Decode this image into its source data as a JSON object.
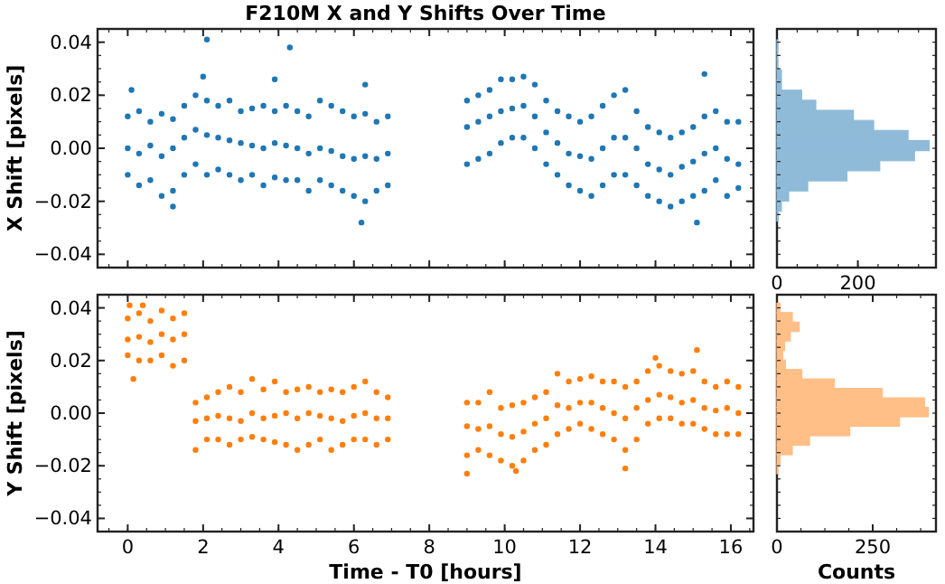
{
  "chart_data": [
    {
      "type": "scatter",
      "title": "F210M X and Y Shifts Over Time",
      "ylabel": "X Shift [pixels]",
      "xlim": [
        -0.8,
        16.6
      ],
      "ylim": [
        -0.045,
        0.045
      ],
      "xticks": [
        0,
        2,
        4,
        6,
        8,
        10,
        12,
        14,
        16
      ],
      "yticks": [
        {
          "value": -0.04,
          "label": "−0.04"
        },
        {
          "value": -0.02,
          "label": "−0.02"
        },
        {
          "value": 0,
          "label": "0.00"
        },
        {
          "value": 0.02,
          "label": "0.02"
        },
        {
          "value": 0.04,
          "label": "0.04"
        }
      ],
      "tick_labels": "y",
      "marker": "circle",
      "series": [
        {
          "color": "#1f77b4",
          "x": [
            0,
            0,
            0,
            0.3,
            0.3,
            0.3,
            0.6,
            0.6,
            0.6,
            0.9,
            0.9,
            0.9,
            1.2,
            1.2,
            1.2,
            1.5,
            1.5,
            1.5,
            1.8,
            1.8,
            1.8,
            2.1,
            2.1,
            2.1,
            2.4,
            2.4,
            2.4,
            2.7,
            2.7,
            2.7,
            3,
            3,
            3,
            3.3,
            3.3,
            3.3,
            3.6,
            3.6,
            3.6,
            3.9,
            3.9,
            3.9,
            4.2,
            4.2,
            4.2,
            4.5,
            4.5,
            4.5,
            4.8,
            4.8,
            4.8,
            5.1,
            5.1,
            5.1,
            5.4,
            5.4,
            5.4,
            5.7,
            5.7,
            5.7,
            6,
            6,
            6,
            6.3,
            6.3,
            6.3,
            6.6,
            6.6,
            6.6,
            6.9,
            6.9,
            6.9,
            9,
            9,
            9,
            9.3,
            9.3,
            9.3,
            9.6,
            9.6,
            9.6,
            9.9,
            9.9,
            9.9,
            10.2,
            10.2,
            10.2,
            10.5,
            10.5,
            10.5,
            10.8,
            10.8,
            10.8,
            11.1,
            11.1,
            11.1,
            11.4,
            11.4,
            11.4,
            11.7,
            11.7,
            11.7,
            12,
            12,
            12,
            12.3,
            12.3,
            12.3,
            12.6,
            12.6,
            12.6,
            12.9,
            12.9,
            12.9,
            13.2,
            13.2,
            13.2,
            13.5,
            13.5,
            13.5,
            13.8,
            13.8,
            13.8,
            14.1,
            14.1,
            14.1,
            14.4,
            14.4,
            14.4,
            14.7,
            14.7,
            14.7,
            15,
            15,
            15,
            15.3,
            15.3,
            15.3,
            15.6,
            15.6,
            15.6,
            15.9,
            15.9,
            15.9,
            16.2,
            16.2,
            16.2,
            2.1,
            4.3,
            3.9,
            2,
            6.3,
            6.2,
            15.1,
            15.3,
            0.1,
            1.2
          ],
          "values": [
            0.012,
            0,
            -0.01,
            0.014,
            -0.002,
            -0.014,
            0.01,
            0.001,
            -0.012,
            0.013,
            -0.003,
            -0.018,
            0.011,
            0,
            -0.016,
            0.016,
            0.004,
            -0.01,
            0.02,
            0.007,
            -0.006,
            0.018,
            0.005,
            -0.01,
            0.016,
            0.004,
            -0.008,
            0.018,
            0.003,
            -0.01,
            0.014,
            0.002,
            -0.012,
            0.015,
            0.001,
            -0.01,
            0.016,
            0,
            -0.014,
            0.014,
            0.002,
            -0.011,
            0.016,
            0.001,
            -0.012,
            0.014,
            0,
            -0.012,
            0.012,
            -0.002,
            -0.016,
            0.018,
            0,
            -0.012,
            0.016,
            -0.001,
            -0.014,
            0.014,
            -0.003,
            -0.016,
            0.012,
            -0.004,
            -0.018,
            0.013,
            -0.003,
            -0.02,
            0.01,
            -0.004,
            -0.016,
            0.012,
            -0.002,
            -0.014,
            0.018,
            0.008,
            -0.006,
            0.02,
            0.01,
            -0.004,
            0.022,
            0.012,
            -0.002,
            0.026,
            0.014,
            0.002,
            0.026,
            0.015,
            0.004,
            0.027,
            0.016,
            0.004,
            0.024,
            0.012,
            0,
            0.018,
            0.006,
            -0.006,
            0.014,
            0.002,
            -0.01,
            0.012,
            -0.002,
            -0.014,
            0.01,
            -0.003,
            -0.016,
            0.012,
            -0.004,
            -0.018,
            0.016,
            0,
            -0.014,
            0.02,
            0.004,
            -0.01,
            0.022,
            0.004,
            -0.01,
            0.014,
            0,
            -0.014,
            0.008,
            -0.006,
            -0.018,
            0.006,
            -0.008,
            -0.02,
            0.004,
            -0.01,
            -0.022,
            0.006,
            -0.007,
            -0.02,
            0.008,
            -0.005,
            -0.018,
            0.012,
            -0.002,
            -0.016,
            0.014,
            0,
            -0.012,
            0.01,
            -0.004,
            -0.018,
            0.01,
            -0.006,
            -0.015,
            0.041,
            0.038,
            0.026,
            0.027,
            0.024,
            -0.028,
            -0.028,
            0.028,
            0.022,
            -0.022
          ]
        }
      ]
    },
    {
      "type": "histogram",
      "orientation": "horizontal",
      "ylim": [
        -0.045,
        0.045
      ],
      "xlim": [
        0,
        393
      ],
      "xticks": [
        0,
        200
      ],
      "tick_labels": "x",
      "bins": [
        -0.0275,
        -0.0237,
        -0.0199,
        -0.0161,
        -0.0123,
        -0.0085,
        -0.0047,
        -0.0009,
        0.0029,
        0.0067,
        0.0105,
        0.0143,
        0.0181,
        0.0219,
        0.0257,
        0.0295,
        0.0333,
        0.0371,
        0.0409
      ],
      "values": [
        3,
        11,
        29,
        76,
        173,
        254,
        340,
        376,
        324,
        239,
        189,
        96,
        61,
        11,
        11,
        2,
        1,
        2
      ],
      "color": "#8fbbd9"
    },
    {
      "type": "scatter",
      "xlabel": "Time - T0 [hours]",
      "ylabel": "Y Shift [pixels]",
      "xlim": [
        -0.8,
        16.6
      ],
      "ylim": [
        -0.045,
        0.045
      ],
      "xticks": [
        0,
        2,
        4,
        6,
        8,
        10,
        12,
        14,
        16
      ],
      "yticks": [
        {
          "value": -0.04,
          "label": "−0.04"
        },
        {
          "value": -0.02,
          "label": "−0.02"
        },
        {
          "value": 0,
          "label": "0.00"
        },
        {
          "value": 0.02,
          "label": "0.02"
        },
        {
          "value": 0.04,
          "label": "0.04"
        }
      ],
      "marker": "circle",
      "series": [
        {
          "color": "#ff7f0e",
          "x": [
            0,
            0,
            0,
            0.3,
            0.3,
            0.3,
            0.6,
            0.6,
            0.6,
            0.9,
            0.9,
            0.9,
            1.2,
            1.2,
            1.2,
            1.5,
            1.5,
            1.5,
            1.8,
            1.8,
            1.8,
            2.1,
            2.1,
            2.1,
            2.4,
            2.4,
            2.4,
            2.7,
            2.7,
            2.7,
            3,
            3,
            3,
            3.3,
            3.3,
            3.3,
            3.6,
            3.6,
            3.6,
            3.9,
            3.9,
            3.9,
            4.2,
            4.2,
            4.2,
            4.5,
            4.5,
            4.5,
            4.8,
            4.8,
            4.8,
            5.1,
            5.1,
            5.1,
            5.4,
            5.4,
            5.4,
            5.7,
            5.7,
            5.7,
            6,
            6,
            6,
            6.3,
            6.3,
            6.3,
            6.6,
            6.6,
            6.6,
            6.9,
            6.9,
            6.9,
            9,
            9,
            9,
            9.3,
            9.3,
            9.3,
            9.6,
            9.6,
            9.6,
            9.9,
            9.9,
            9.9,
            10.2,
            10.2,
            10.2,
            10.5,
            10.5,
            10.5,
            10.8,
            10.8,
            10.8,
            11.1,
            11.1,
            11.1,
            11.4,
            11.4,
            11.4,
            11.7,
            11.7,
            11.7,
            12,
            12,
            12,
            12.3,
            12.3,
            12.3,
            12.6,
            12.6,
            12.6,
            12.9,
            12.9,
            12.9,
            13.2,
            13.2,
            13.2,
            13.5,
            13.5,
            13.5,
            13.8,
            13.8,
            13.8,
            14.1,
            14.1,
            14.1,
            14.4,
            14.4,
            14.4,
            14.7,
            14.7,
            14.7,
            15,
            15,
            15,
            15.3,
            15.3,
            15.3,
            15.6,
            15.6,
            15.6,
            15.9,
            15.9,
            15.9,
            16.2,
            16.2,
            16.2,
            0.05,
            0.4,
            0.15,
            15.1,
            14,
            13.2,
            9,
            10.3
          ],
          "values": [
            0.036,
            0.028,
            0.022,
            0.038,
            0.029,
            0.02,
            0.035,
            0.027,
            0.02,
            0.039,
            0.03,
            0.022,
            0.036,
            0.028,
            0.018,
            0.038,
            0.03,
            0.02,
            0.004,
            -0.003,
            -0.014,
            0.006,
            -0.002,
            -0.01,
            0.008,
            -0.001,
            -0.01,
            0.01,
            -0.002,
            -0.012,
            0.008,
            -0.003,
            -0.01,
            0.013,
            0,
            -0.009,
            0.009,
            -0.002,
            -0.01,
            0.012,
            -0.001,
            -0.011,
            0.008,
            0,
            -0.012,
            0.009,
            -0.002,
            -0.014,
            0.01,
            0,
            -0.012,
            0.008,
            -0.001,
            -0.01,
            0.009,
            -0.002,
            -0.014,
            0.008,
            -0.003,
            -0.012,
            0.01,
            -0.001,
            -0.01,
            0.012,
            0,
            -0.01,
            0.008,
            -0.002,
            -0.012,
            0.006,
            -0.002,
            -0.01,
            0.004,
            -0.005,
            -0.016,
            0.004,
            -0.006,
            -0.014,
            0.008,
            -0.005,
            -0.016,
            0.002,
            -0.008,
            -0.018,
            0.003,
            -0.009,
            -0.02,
            0.004,
            -0.007,
            -0.018,
            0.006,
            -0.004,
            -0.014,
            0.008,
            -0.002,
            -0.012,
            0.015,
            0.003,
            -0.008,
            0.012,
            0.002,
            -0.006,
            0.013,
            0.004,
            -0.004,
            0.014,
            0.004,
            -0.006,
            0.012,
            0.002,
            -0.008,
            0.012,
            0,
            -0.01,
            0.01,
            -0.002,
            -0.014,
            0.012,
            0.002,
            -0.01,
            0.016,
            0.005,
            -0.004,
            0.018,
            0.007,
            -0.002,
            0.016,
            0.006,
            -0.002,
            0.015,
            0.004,
            -0.004,
            0.016,
            0.005,
            -0.004,
            0.012,
            0.002,
            -0.006,
            0.01,
            0.001,
            -0.008,
            0.012,
            0.002,
            -0.008,
            0.01,
            0,
            -0.008,
            0.041,
            0.041,
            0.013,
            0.024,
            0.021,
            -0.021,
            -0.023,
            -0.022
          ]
        }
      ]
    },
    {
      "type": "histogram",
      "orientation": "horizontal",
      "xlabel": "Counts",
      "ylim": [
        -0.045,
        0.045
      ],
      "xlim": [
        0,
        415
      ],
      "xticks": [
        0,
        250
      ],
      "tick_labels": "x",
      "bins": [
        -0.023,
        -0.0194,
        -0.0158,
        -0.0122,
        -0.0086,
        -0.005,
        -0.0014,
        0.0022,
        0.0058,
        0.0094,
        0.013,
        0.0166,
        0.0202,
        0.0238,
        0.0274,
        0.031,
        0.0346,
        0.0382,
        0.0418
      ],
      "values": [
        2,
        8,
        40,
        85,
        190,
        320,
        395,
        385,
        275,
        150,
        65,
        22,
        15,
        20,
        35,
        58,
        40,
        8
      ],
      "color": "#ffbf87"
    }
  ]
}
